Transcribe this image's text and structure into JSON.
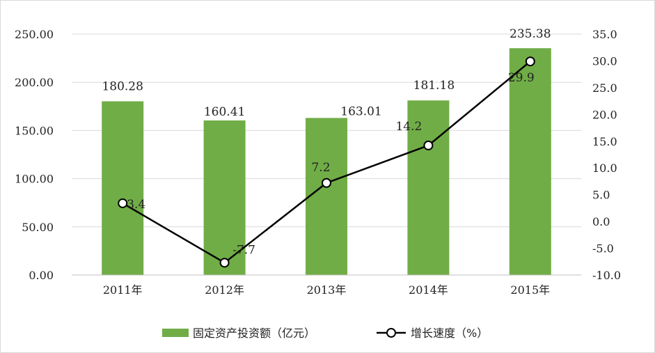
{
  "chart_data": {
    "type": "bar+line",
    "categories": [
      "2011年",
      "2012年",
      "2013年",
      "2014年",
      "2015年"
    ],
    "series": [
      {
        "name": "固定资产投资额（亿元）",
        "type": "bar",
        "axis": "left",
        "values": [
          180.28,
          160.41,
          163.01,
          181.18,
          235.38
        ],
        "labels": [
          "180.28",
          "160.41",
          "163.01",
          "181.18",
          "235.38"
        ],
        "color": "#70ad47"
      },
      {
        "name": "增长速度（%）",
        "type": "line",
        "axis": "right",
        "values": [
          3.4,
          -7.7,
          7.2,
          14.2,
          29.9
        ],
        "labels": [
          "3.4",
          "-7.7",
          "7.2",
          "14.2",
          "29.9"
        ],
        "color": "#000000"
      }
    ],
    "y_left": {
      "range": [
        0,
        250
      ],
      "ticks": [
        0,
        50,
        100,
        150,
        200,
        250
      ],
      "tick_labels": [
        "0.00",
        "50.00",
        "100.00",
        "150.00",
        "200.00",
        "250.00"
      ]
    },
    "y_right": {
      "range": [
        -10,
        35
      ],
      "ticks": [
        -10,
        -5,
        0,
        5,
        10,
        15,
        20,
        25,
        30,
        35
      ],
      "tick_labels": [
        "-10.0",
        "-5.0",
        "0.0",
        "5.0",
        "10.0",
        "15.0",
        "20.0",
        "25.0",
        "30.0",
        "35.0"
      ]
    },
    "grid": true,
    "legend": "bottom"
  }
}
